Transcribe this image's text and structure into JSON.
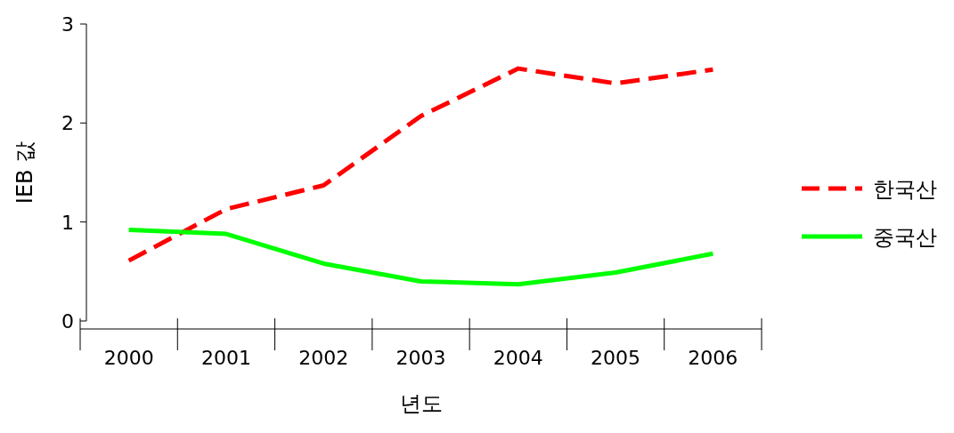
{
  "chart_data": {
    "type": "line",
    "xlabel": "년도",
    "ylabel": "IEB 값",
    "categories": [
      "2000",
      "2001",
      "2002",
      "2003",
      "2004",
      "2005",
      "2006"
    ],
    "ylim": [
      0,
      3
    ],
    "yticks": [
      0,
      1,
      2,
      3
    ],
    "legend": "right",
    "series": [
      {
        "name": "한국산",
        "color": "#ff0000",
        "line_style": "dashed",
        "values": [
          0.61,
          1.13,
          1.37,
          2.07,
          2.55,
          2.4,
          2.54
        ]
      },
      {
        "name": "중국산",
        "color": "#00ff00",
        "line_style": "solid",
        "values": [
          0.92,
          0.88,
          0.58,
          0.4,
          0.37,
          0.49,
          0.68
        ]
      }
    ]
  }
}
